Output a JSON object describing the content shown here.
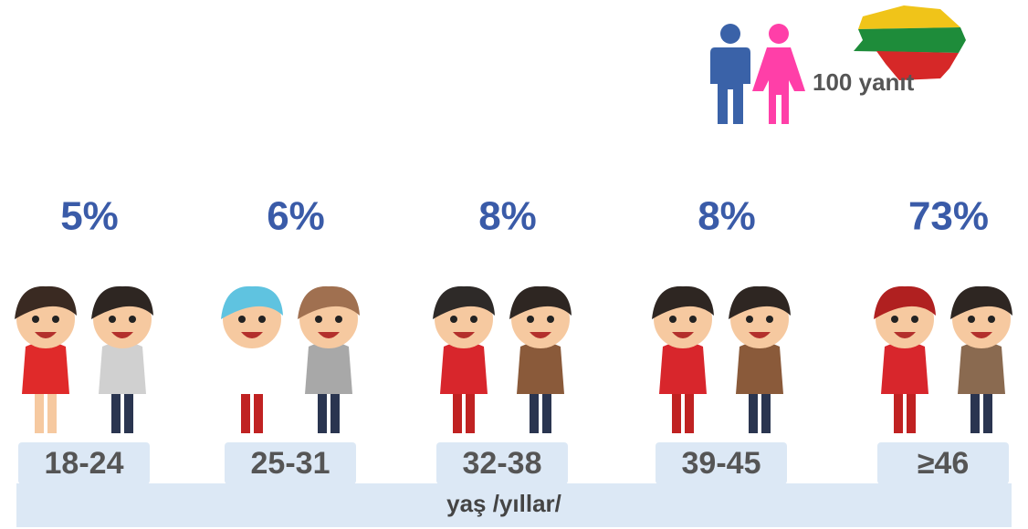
{
  "chart_data": {
    "type": "pictogram",
    "categories": [
      "18-24",
      "25-31",
      "32-38",
      "39-45",
      "≥46"
    ],
    "values": [
      5,
      6,
      8,
      8,
      73
    ],
    "value_labels": [
      "5%",
      "6%",
      "8%",
      "8%",
      "73%"
    ],
    "color": "#3a5ba8",
    "xlabel": "yaş /yıllar/",
    "annotation": "100 yanıt"
  }
}
